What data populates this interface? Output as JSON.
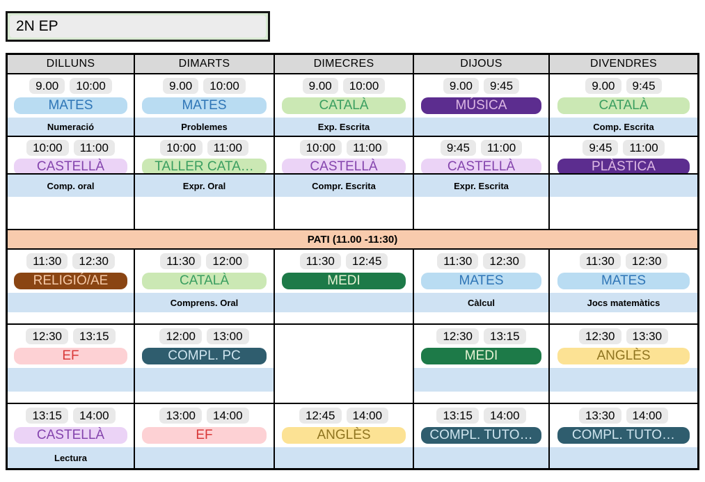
{
  "class_label": "2N EP",
  "days": [
    "DILLUNS",
    "DIMARTS",
    "DIMECRES",
    "DIJOUS",
    "DIVENDRES"
  ],
  "pati_label": "PATI (11.00 -11:30)",
  "colors": {
    "blue": {
      "bg": "#b9dcf2",
      "fg": "#2e75b6"
    },
    "green": {
      "bg": "#cbe8b4",
      "fg": "#3a9e60"
    },
    "lavender": {
      "bg": "#ebd3f6",
      "fg": "#8444ad"
    },
    "purpleDark": {
      "bg": "#5c2d8f",
      "fg": "#ddb8e4"
    },
    "brown": {
      "bg": "#8a4513",
      "fg": "#f6caa8"
    },
    "greenDark": {
      "bg": "#1d7a48",
      "fg": "#e7f3d4"
    },
    "pink": {
      "bg": "#fdd1d4",
      "fg": "#d93838"
    },
    "tealDark": {
      "bg": "#2f5d6e",
      "fg": "#cfe5ef"
    },
    "yellow": {
      "bg": "#fce294",
      "fg": "#8f7420"
    },
    "time_pill_bg": "#e9e9e9",
    "note_band_bg": "#cfe2f3",
    "pati_bg": "#f8cbad",
    "day_header_bg": "#d9d9d9",
    "name_box_bg": "#d9ead3"
  },
  "periods": [
    {
      "cells": [
        {
          "start": "9.00",
          "end": "10:00",
          "subject": "MATES",
          "style": "blue",
          "note": "Numeració"
        },
        {
          "start": "9.00",
          "end": "10:00",
          "subject": "MATES",
          "style": "blue",
          "note": "Problemes"
        },
        {
          "start": "9.00",
          "end": "10:00",
          "subject": "CATALÀ",
          "style": "green",
          "note": "Exp. Escrita"
        },
        {
          "start": "9.00",
          "end": "9:45",
          "subject": "MÚSICA",
          "style": "purpleDark",
          "note": ""
        },
        {
          "start": "9.00",
          "end": "9:45",
          "subject": "CATALÀ",
          "style": "green",
          "note": "Comp. Escrita"
        }
      ]
    },
    {
      "cells": [
        {
          "start": "10:00",
          "end": "11:00",
          "subject": "CASTELLÀ",
          "style": "lavender",
          "note": "Comp. oral"
        },
        {
          "start": "10:00",
          "end": "11:00",
          "subject": "TALLER CATA…",
          "style": "green",
          "note": "Expr. Oral"
        },
        {
          "start": "10:00",
          "end": "11:00",
          "subject": "CASTELLÀ",
          "style": "lavender",
          "note": "Compr. Escrita"
        },
        {
          "start": "9:45",
          "end": "11:00",
          "subject": "CASTELLÀ",
          "style": "lavender",
          "note": "Expr. Escrita"
        },
        {
          "start": "9:45",
          "end": "11:00",
          "subject": "PLÀSTICA",
          "style": "purpleDark",
          "note": ""
        }
      ]
    },
    {
      "cells": [
        {
          "start": "11:30",
          "end": "12:30",
          "subject": "RELIGIÓ/AE",
          "style": "brown",
          "note": ""
        },
        {
          "start": "11:30",
          "end": "12:00",
          "subject": "CATALÀ",
          "style": "green",
          "note": "Comprens. Oral"
        },
        {
          "start": "11:30",
          "end": "12:45",
          "subject": "MEDI",
          "style": "greenDark",
          "note": ""
        },
        {
          "start": "11:30",
          "end": "12:30",
          "subject": "MATES",
          "style": "blue",
          "note": "Càlcul"
        },
        {
          "start": "11:30",
          "end": "12:30",
          "subject": "MATES",
          "style": "blue",
          "note": "Jocs matemàtics"
        }
      ]
    },
    {
      "cells": [
        {
          "start": "12:30",
          "end": "13:15",
          "subject": "EF",
          "style": "pink",
          "note": ""
        },
        {
          "start": "12:00",
          "end": "13:00",
          "subject": "COMPL. PC",
          "style": "tealDark",
          "note": ""
        },
        null,
        {
          "start": "12:30",
          "end": "13:15",
          "subject": "MEDI",
          "style": "greenDark",
          "note": ""
        },
        {
          "start": "12:30",
          "end": "13:30",
          "subject": "ANGLÈS",
          "style": "yellow",
          "note": ""
        }
      ]
    },
    {
      "cells": [
        {
          "start": "13:15",
          "end": "14:00",
          "subject": "CASTELLÀ",
          "style": "lavender",
          "note": "Lectura"
        },
        {
          "start": "13:00",
          "end": "14:00",
          "subject": "EF",
          "style": "pink",
          "note": ""
        },
        {
          "start": "12:45",
          "end": "14:00",
          "subject": "ANGLÈS",
          "style": "yellow",
          "note": ""
        },
        {
          "start": "13:15",
          "end": "14:00",
          "subject": "COMPL. TUTO…",
          "style": "tealDark",
          "note": ""
        },
        {
          "start": "13:30",
          "end": "14:00",
          "subject": "COMPL. TUTO…",
          "style": "tealDark",
          "note": ""
        }
      ]
    }
  ]
}
